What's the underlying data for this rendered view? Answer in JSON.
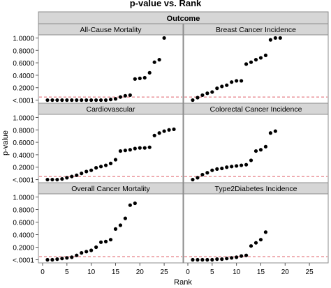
{
  "title": "p-value vs. Rank",
  "group_header": "Outcome",
  "x_label": "Rank",
  "y_label": "p-value",
  "y_tick_labels": [
    "1.0000",
    "0.8000",
    "0.6000",
    "0.4000",
    "0.2000",
    "<.0001"
  ],
  "x_tick_labels": [
    "0",
    "5",
    "10",
    "15",
    "20",
    "25"
  ],
  "colors": {
    "panel_header_bg": "#d6d6d6",
    "point": "#000000",
    "reference_line": "#e0606a",
    "frame": "#8c8c8c",
    "grid": "#c8c8c8"
  },
  "chart_data": {
    "type": "scatter",
    "xlim": [
      0,
      28
    ],
    "ylim": [
      -0.05,
      1.05
    ],
    "y_ticks": [
      0,
      0.2,
      0.4,
      0.6,
      0.8,
      1.0
    ],
    "x_ticks": [
      0,
      5,
      10,
      15,
      20,
      25
    ],
    "reference_line_y": 0.05,
    "panels": [
      {
        "name": "All-Cause Mortality",
        "x": [
          1,
          2,
          3,
          4,
          5,
          6,
          7,
          8,
          9,
          10,
          11,
          12,
          13,
          14,
          15,
          16,
          17,
          18,
          19,
          20,
          21,
          22,
          23,
          24,
          25
        ],
        "y": [
          0,
          0,
          0,
          0,
          0,
          0,
          0,
          0,
          0,
          0,
          0,
          0,
          0,
          0.01,
          0.02,
          0.05,
          0.07,
          0.08,
          0.34,
          0.35,
          0.36,
          0.44,
          0.61,
          0.65,
          1.0
        ]
      },
      {
        "name": "Breast Cancer Incidence",
        "x": [
          1,
          2,
          3,
          4,
          5,
          6,
          7,
          8,
          9,
          10,
          11,
          12,
          13,
          14,
          15,
          16,
          17,
          18,
          19
        ],
        "y": [
          0,
          0.04,
          0.08,
          0.11,
          0.13,
          0.19,
          0.22,
          0.24,
          0.29,
          0.31,
          0.31,
          0.58,
          0.61,
          0.65,
          0.68,
          0.72,
          0.97,
          1.0,
          1.0
        ]
      },
      {
        "name": "Cardiovascular",
        "x": [
          1,
          2,
          3,
          4,
          5,
          6,
          7,
          8,
          9,
          10,
          11,
          12,
          13,
          14,
          15,
          16,
          17,
          18,
          19,
          20,
          21,
          22,
          23,
          24,
          25,
          26,
          27
        ],
        "y": [
          0,
          0,
          0,
          0.01,
          0.03,
          0.05,
          0.07,
          0.1,
          0.13,
          0.15,
          0.19,
          0.21,
          0.23,
          0.26,
          0.32,
          0.46,
          0.47,
          0.48,
          0.5,
          0.51,
          0.51,
          0.52,
          0.71,
          0.75,
          0.78,
          0.8,
          0.81
        ]
      },
      {
        "name": "Colorectal Cancer Incidence",
        "x": [
          1,
          2,
          3,
          4,
          5,
          6,
          7,
          8,
          9,
          10,
          11,
          12,
          13,
          14,
          15,
          16,
          17,
          18
        ],
        "y": [
          0,
          0.03,
          0.08,
          0.11,
          0.15,
          0.17,
          0.18,
          0.2,
          0.21,
          0.22,
          0.23,
          0.24,
          0.31,
          0.46,
          0.48,
          0.53,
          0.75,
          0.78
        ]
      },
      {
        "name": "Overall Cancer Mortality",
        "x": [
          1,
          2,
          3,
          4,
          5,
          6,
          7,
          8,
          9,
          10,
          11,
          12,
          13,
          14,
          15,
          16,
          17,
          18,
          19
        ],
        "y": [
          0,
          0,
          0.01,
          0.02,
          0.03,
          0.04,
          0.07,
          0.11,
          0.13,
          0.15,
          0.2,
          0.28,
          0.29,
          0.32,
          0.49,
          0.55,
          0.66,
          0.87,
          0.9
        ]
      },
      {
        "name": "Type2Diabetes Incidence",
        "x": [
          1,
          2,
          3,
          4,
          5,
          6,
          7,
          8,
          9,
          10,
          11,
          12,
          13,
          14,
          15,
          16
        ],
        "y": [
          0,
          0,
          0,
          0,
          0,
          0.01,
          0.01,
          0.02,
          0.03,
          0.04,
          0.06,
          0.07,
          0.22,
          0.27,
          0.32,
          0.44
        ]
      }
    ]
  }
}
